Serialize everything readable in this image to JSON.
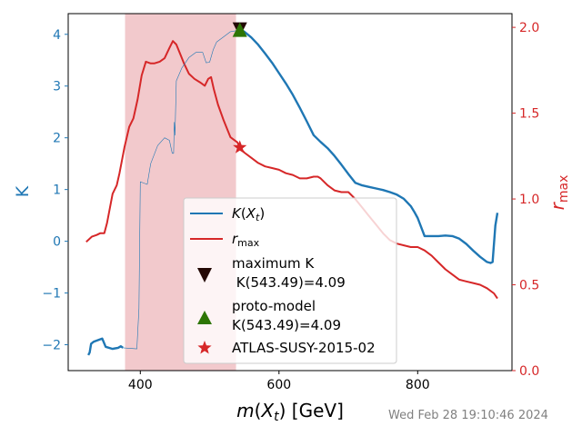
{
  "chart_data": {
    "type": "line",
    "xlabel": "m(X_t) [GeV]",
    "ylabel_left": "K",
    "ylabel_right": "r_max",
    "xlim": [
      296,
      936
    ],
    "ylim_left": [
      -2.5,
      4.4
    ],
    "ylim_right": [
      0.0,
      2.08
    ],
    "xticks": [
      400,
      600,
      800
    ],
    "yticks_left": [
      -2,
      -1,
      0,
      1,
      2,
      3,
      4
    ],
    "yticks_right": [
      0.0,
      0.5,
      1.0,
      1.5,
      2.0
    ],
    "colors": {
      "K": "#1f77b4",
      "rmax": "#d62728",
      "band": "#f2c9cc",
      "max_marker": "#230804",
      "proto_marker": "#2d7505",
      "analysis_marker": "#d62728",
      "left_axis": "#1f77b4",
      "right_axis": "#d62728"
    },
    "shaded_band": {
      "x": [
        378,
        538
      ]
    },
    "series": [
      {
        "name": "K(X_t)",
        "color": "#1f77b4",
        "segments": [
          {
            "width": "thick",
            "x": [
              325,
              327,
              329,
              333,
              345,
              350,
              360,
              368,
              372,
              375
            ],
            "y": [
              -2.2,
              -2.15,
              -1.98,
              -1.94,
              -1.88,
              -2.04,
              -2.08,
              -2.06,
              -2.03,
              -2.06
            ]
          },
          {
            "width": "thin",
            "x": [
              375,
              395,
              398,
              400,
              410,
              415,
              425,
              435,
              442,
              446,
              448,
              449,
              450,
              452,
              460,
              470,
              480,
              490,
              495,
              500,
              505,
              510,
              520,
              530,
              538,
              543.49
            ],
            "y": [
              -2.06,
              -2.08,
              -1.3,
              1.15,
              1.1,
              1.5,
              1.85,
              2.0,
              1.95,
              1.7,
              1.7,
              2.3,
              2.05,
              3.1,
              3.35,
              3.55,
              3.65,
              3.65,
              3.45,
              3.46,
              3.7,
              3.85,
              3.95,
              4.05,
              4.07,
              4.09
            ]
          },
          {
            "width": "thick",
            "x": [
              543.49,
              550,
              560,
              570,
              580,
              590,
              600,
              610,
              620,
              630,
              640,
              650,
              660,
              670,
              680,
              690,
              700,
              710,
              720,
              730,
              740,
              750,
              760,
              770,
              780,
              790,
              795,
              800,
              810,
              820,
              830,
              840,
              850,
              860,
              870,
              880,
              890,
              900,
              905,
              908,
              912,
              915
            ],
            "y": [
              4.09,
              4.05,
              3.94,
              3.8,
              3.63,
              3.45,
              3.25,
              3.05,
              2.83,
              2.58,
              2.32,
              2.05,
              1.92,
              1.8,
              1.65,
              1.48,
              1.3,
              1.13,
              1.08,
              1.05,
              1.02,
              0.99,
              0.95,
              0.9,
              0.82,
              0.68,
              0.57,
              0.45,
              0.1,
              0.1,
              0.1,
              0.11,
              0.1,
              0.05,
              -0.05,
              -0.18,
              -0.3,
              -0.4,
              -0.42,
              -0.4,
              0.3,
              0.55
            ]
          }
        ]
      },
      {
        "name": "r_max",
        "color": "#d62728",
        "x": [
          322,
          330,
          337,
          342,
          348,
          352,
          360,
          366,
          370,
          377,
          384,
          390,
          396,
          402,
          408,
          415,
          420,
          428,
          435,
          442,
          447,
          452,
          458,
          463,
          470,
          478,
          486,
          493,
          498,
          502,
          506,
          512,
          520,
          530,
          540,
          543.49,
          550,
          560,
          570,
          580,
          590,
          600,
          610,
          620,
          630,
          640,
          650,
          656,
          660,
          670,
          680,
          690,
          695,
          700,
          710,
          720,
          730,
          740,
          750,
          760,
          770,
          780,
          790,
          800,
          810,
          820,
          830,
          840,
          850,
          860,
          870,
          880,
          890,
          900,
          910,
          915
        ],
        "y": [
          0.75,
          0.78,
          0.79,
          0.8,
          0.8,
          0.86,
          1.03,
          1.08,
          1.15,
          1.3,
          1.42,
          1.47,
          1.58,
          1.72,
          1.8,
          1.79,
          1.79,
          1.8,
          1.82,
          1.88,
          1.92,
          1.9,
          1.84,
          1.79,
          1.73,
          1.7,
          1.68,
          1.66,
          1.7,
          1.71,
          1.64,
          1.55,
          1.46,
          1.36,
          1.33,
          1.3,
          1.27,
          1.24,
          1.21,
          1.19,
          1.18,
          1.17,
          1.15,
          1.14,
          1.12,
          1.12,
          1.13,
          1.13,
          1.12,
          1.08,
          1.05,
          1.04,
          1.04,
          1.04,
          1.0,
          0.95,
          0.9,
          0.85,
          0.8,
          0.76,
          0.74,
          0.73,
          0.72,
          0.72,
          0.7,
          0.67,
          0.63,
          0.59,
          0.56,
          0.53,
          0.52,
          0.51,
          0.5,
          0.48,
          0.45,
          0.42
        ]
      }
    ],
    "markers": [
      {
        "name": "maximum_K",
        "x": 543.49,
        "y": 4.09,
        "axis": "left",
        "shape": "triangle-down"
      },
      {
        "name": "proto_model",
        "x": 543.49,
        "y": 4.09,
        "axis": "left",
        "shape": "triangle-up"
      },
      {
        "name": "analysis",
        "x": 543.49,
        "y": 1.3,
        "axis": "right",
        "shape": "star"
      }
    ],
    "legend": {
      "position": "lower center",
      "entries": [
        {
          "label": "K(X_t)"
        },
        {
          "label": "r_max"
        },
        {
          "label_lines": [
            "maximum K",
            "K(543.49)=4.09"
          ]
        },
        {
          "label_lines": [
            "proto-model",
            "K(543.49)=4.09"
          ]
        },
        {
          "label": "ATLAS-SUSY-2015-02"
        }
      ]
    }
  },
  "timestamp": "Wed Feb 28 19:10:46 2024"
}
